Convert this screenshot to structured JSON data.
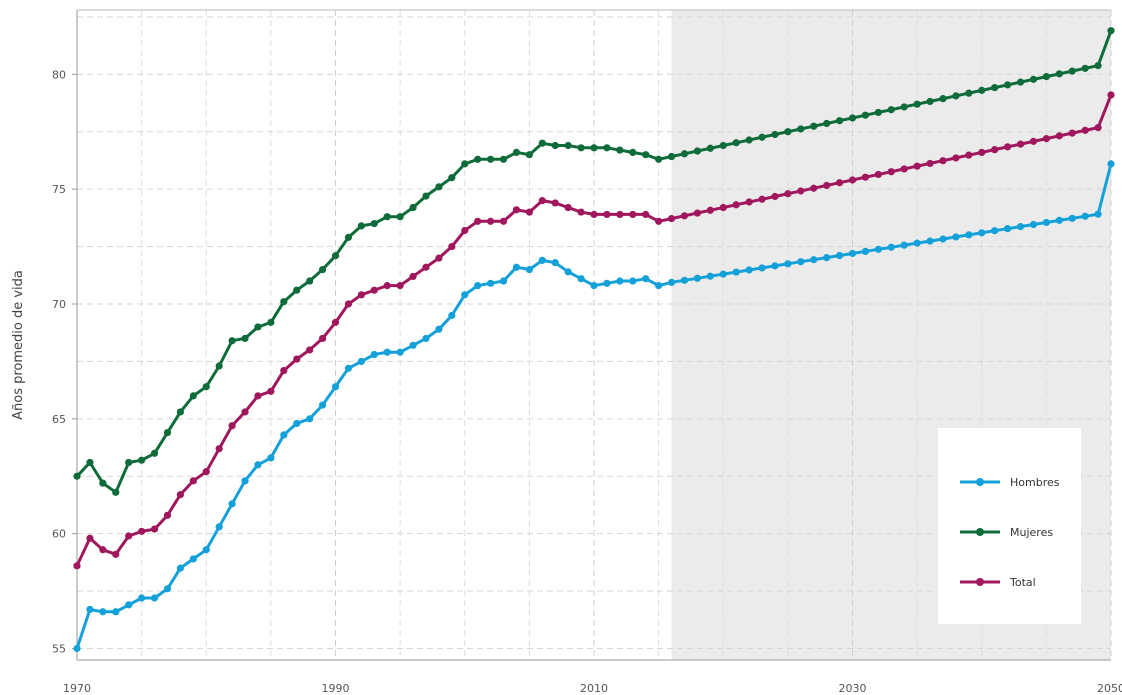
{
  "chart_data": {
    "type": "line",
    "title": "",
    "xlabel": "",
    "ylabel": "Años promedio de vida",
    "xlim": [
      1970,
      2050
    ],
    "ylim": [
      54.5,
      82.8
    ],
    "x_ticks": [
      1970,
      1990,
      2010,
      2030,
      2050
    ],
    "x_tick_labels": [
      "1970",
      "1990",
      "2010",
      "2030",
      "2050"
    ],
    "y_ticks": [
      55,
      60,
      65,
      70,
      75,
      80
    ],
    "y_tick_labels": [
      "55",
      "60",
      "65",
      "70",
      "75",
      "80"
    ],
    "grid": true,
    "projection_shading": {
      "from": 2016,
      "to": 2050
    },
    "legend_position": "bottom-right",
    "x": [
      1970,
      1971,
      1972,
      1973,
      1974,
      1975,
      1976,
      1977,
      1978,
      1979,
      1980,
      1981,
      1982,
      1983,
      1984,
      1985,
      1986,
      1987,
      1988,
      1989,
      1990,
      1991,
      1992,
      1993,
      1994,
      1995,
      1996,
      1997,
      1998,
      1999,
      2000,
      2001,
      2002,
      2003,
      2004,
      2005,
      2006,
      2007,
      2008,
      2009,
      2010,
      2011,
      2012,
      2013,
      2014,
      2015,
      2016,
      2017,
      2018,
      2019,
      2020,
      2021,
      2022,
      2023,
      2024,
      2025,
      2026,
      2027,
      2028,
      2029,
      2030,
      2031,
      2032,
      2033,
      2034,
      2035,
      2036,
      2037,
      2038,
      2039,
      2040,
      2041,
      2042,
      2043,
      2044,
      2045,
      2046,
      2047,
      2048,
      2049,
      2050
    ],
    "series": [
      {
        "name": "Hombres",
        "color": "#14a0d8",
        "values": [
          55.0,
          56.7,
          56.6,
          56.6,
          56.9,
          57.2,
          57.2,
          57.6,
          58.5,
          58.9,
          59.3,
          60.3,
          61.3,
          62.3,
          63.0,
          63.3,
          64.3,
          64.8,
          65.0,
          65.6,
          66.4,
          67.2,
          67.5,
          67.8,
          67.9,
          67.9,
          68.2,
          68.5,
          68.9,
          69.5,
          70.4,
          70.8,
          70.9,
          71.0,
          71.6,
          71.5,
          71.9,
          71.8,
          71.4,
          71.1,
          70.8,
          70.9,
          71.0,
          71.0,
          71.1,
          70.8,
          70.94,
          71.03,
          71.12,
          71.21,
          71.3,
          71.39,
          71.48,
          71.57,
          71.66,
          71.75,
          71.84,
          71.93,
          72.02,
          72.11,
          72.2,
          72.29,
          72.38,
          72.47,
          72.56,
          72.65,
          72.74,
          72.83,
          72.92,
          73.01,
          73.1,
          73.19,
          73.28,
          73.37,
          73.46,
          73.55,
          73.64,
          73.73,
          73.82,
          73.91,
          76.1
        ]
      },
      {
        "name": "Mujeres",
        "color": "#0f6b3a",
        "values": [
          62.5,
          63.1,
          62.2,
          61.8,
          63.1,
          63.2,
          63.5,
          64.4,
          65.3,
          66.0,
          66.4,
          67.3,
          68.4,
          68.5,
          69.0,
          69.2,
          70.1,
          70.6,
          71.0,
          71.5,
          72.1,
          72.9,
          73.4,
          73.5,
          73.8,
          73.8,
          74.2,
          74.7,
          75.1,
          75.5,
          76.1,
          76.3,
          76.3,
          76.3,
          76.6,
          76.5,
          77.0,
          76.9,
          76.9,
          76.8,
          76.8,
          76.8,
          76.7,
          76.6,
          76.5,
          76.3,
          76.42,
          76.54,
          76.66,
          76.78,
          76.9,
          77.02,
          77.14,
          77.26,
          77.38,
          77.5,
          77.62,
          77.74,
          77.86,
          77.98,
          78.1,
          78.22,
          78.34,
          78.46,
          78.58,
          78.7,
          78.82,
          78.94,
          79.06,
          79.18,
          79.3,
          79.42,
          79.54,
          79.66,
          79.78,
          79.9,
          80.02,
          80.14,
          80.26,
          80.38,
          81.9
        ]
      },
      {
        "name": "Total",
        "color": "#a0175e",
        "values": [
          58.6,
          59.8,
          59.3,
          59.1,
          59.9,
          60.1,
          60.2,
          60.8,
          61.7,
          62.3,
          62.7,
          63.7,
          64.7,
          65.3,
          66.0,
          66.2,
          67.1,
          67.6,
          68.0,
          68.5,
          69.2,
          70.0,
          70.4,
          70.6,
          70.8,
          70.8,
          71.2,
          71.6,
          72.0,
          72.5,
          73.2,
          73.6,
          73.6,
          73.6,
          74.1,
          74.0,
          74.5,
          74.4,
          74.2,
          74.0,
          73.9,
          73.9,
          73.9,
          73.9,
          73.9,
          73.6,
          73.72,
          73.84,
          73.96,
          74.08,
          74.2,
          74.32,
          74.44,
          74.56,
          74.68,
          74.8,
          74.92,
          75.04,
          75.16,
          75.28,
          75.4,
          75.52,
          75.64,
          75.76,
          75.88,
          76.0,
          76.12,
          76.24,
          76.36,
          76.48,
          76.6,
          76.72,
          76.84,
          76.96,
          77.08,
          77.2,
          77.32,
          77.44,
          77.56,
          77.68,
          79.1
        ]
      }
    ]
  }
}
